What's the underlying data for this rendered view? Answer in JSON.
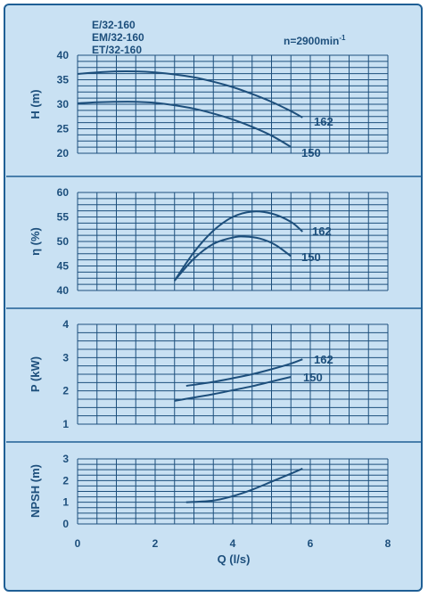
{
  "header": {
    "models": [
      "E/32-160",
      "EM/32-160",
      "ET/32-160"
    ],
    "speed_prefix": "n=2900min",
    "speed_exp": "-1"
  },
  "colors": {
    "background": "#c9e1f3",
    "ink": "#1d4f7c",
    "border": "#1f5f95"
  },
  "x_axis": {
    "label": "Q (l/s)",
    "range": [
      0,
      8
    ],
    "ticks": [
      "0",
      "2",
      "4",
      "6",
      "8"
    ]
  },
  "chart_data": [
    {
      "type": "line",
      "ylabel": "H (m)",
      "ylim": [
        20,
        40
      ],
      "yticks": [
        "20",
        "25",
        "30",
        "35",
        "40"
      ],
      "grid": true,
      "series": [
        {
          "name": "162",
          "x": [
            0,
            0.5,
            1,
            1.5,
            2,
            2.5,
            3,
            3.5,
            4,
            4.5,
            5,
            5.5,
            5.8
          ],
          "y": [
            36.2,
            36.5,
            36.7,
            36.7,
            36.5,
            36.1,
            35.5,
            34.6,
            33.5,
            32.1,
            30.5,
            28.6,
            27.3
          ]
        },
        {
          "name": "150",
          "x": [
            0,
            0.5,
            1,
            1.5,
            2,
            2.5,
            3,
            3.5,
            4,
            4.5,
            5,
            5.5
          ],
          "y": [
            30.2,
            30.4,
            30.5,
            30.5,
            30.3,
            29.8,
            29.1,
            28.1,
            26.9,
            25.4,
            23.6,
            21.3
          ]
        }
      ]
    },
    {
      "type": "line",
      "ylabel": "η (%)",
      "ylim": [
        40,
        60
      ],
      "yticks": [
        "40",
        "45",
        "50",
        "55",
        "60"
      ],
      "grid": true,
      "series": [
        {
          "name": "162",
          "x": [
            2.5,
            3,
            3.5,
            4,
            4.5,
            5,
            5.5,
            5.8
          ],
          "y": [
            42.0,
            47.8,
            52.2,
            55.0,
            56.1,
            55.7,
            54.0,
            52.0
          ]
        },
        {
          "name": "150",
          "x": [
            2.5,
            3,
            3.5,
            4,
            4.3,
            4.7,
            5.1,
            5.5
          ],
          "y": [
            42.0,
            46.5,
            49.5,
            50.8,
            51.0,
            50.6,
            49.3,
            47.0
          ]
        }
      ]
    },
    {
      "type": "line",
      "ylabel": "P (kW)",
      "ylim": [
        1,
        4
      ],
      "yticks": [
        "1",
        "2",
        "3",
        "4"
      ],
      "grid": true,
      "series": [
        {
          "name": "162",
          "x": [
            2.8,
            3.5,
            4,
            4.5,
            5,
            5.5,
            5.8
          ],
          "y": [
            2.15,
            2.27,
            2.38,
            2.5,
            2.65,
            2.82,
            2.95
          ]
        },
        {
          "name": "150",
          "x": [
            2.5,
            3,
            3.5,
            4,
            4.5,
            5,
            5.5
          ],
          "y": [
            1.7,
            1.8,
            1.9,
            2.02,
            2.14,
            2.28,
            2.42
          ]
        }
      ]
    },
    {
      "type": "line",
      "ylabel": "NPSH (m)",
      "ylim": [
        0,
        3
      ],
      "yticks": [
        "0",
        "1",
        "2",
        "3"
      ],
      "grid": true,
      "series": [
        {
          "x": [
            2.8,
            3.5,
            4,
            4.5,
            5,
            5.5,
            5.8
          ],
          "y": [
            1.0,
            1.08,
            1.28,
            1.58,
            1.95,
            2.32,
            2.55
          ]
        }
      ]
    }
  ]
}
